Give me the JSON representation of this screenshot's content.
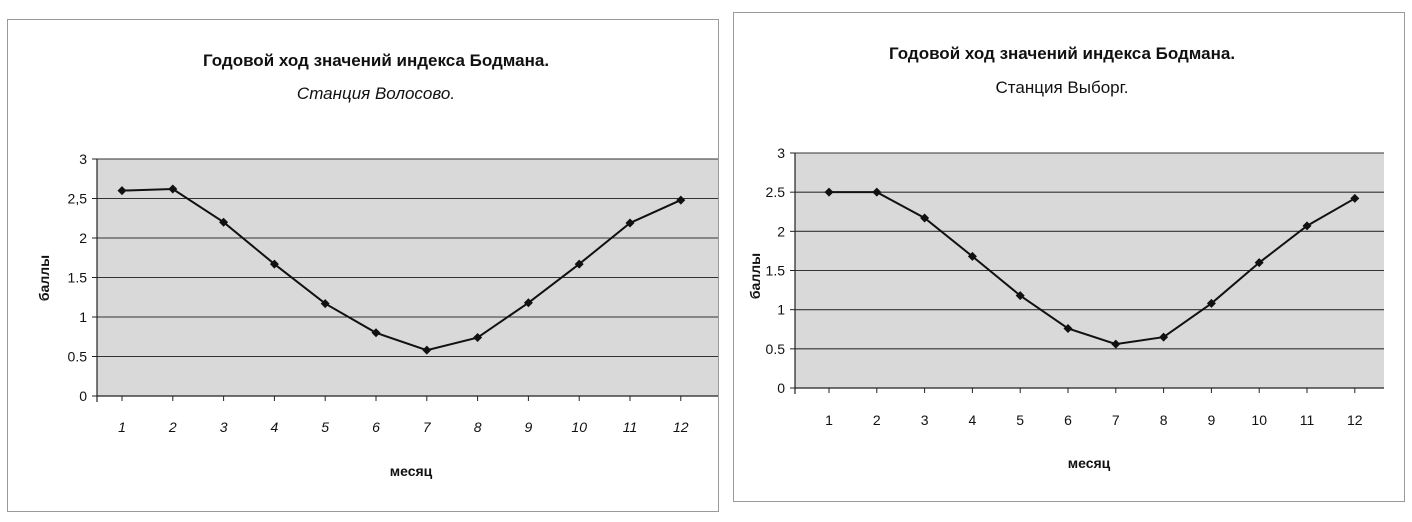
{
  "chart_data": [
    {
      "type": "line",
      "title": "Годовой ход значений индекса Бодмана.",
      "subtitle": "Станция Волосово.",
      "xlabel": "месяц",
      "ylabel": "баллы",
      "categories": [
        "1",
        "2",
        "3",
        "4",
        "5",
        "6",
        "7",
        "8",
        "9",
        "10",
        "11",
        "12"
      ],
      "y_ticks": [
        "0",
        "0.5",
        "1",
        "1.5",
        "2",
        "2,5",
        "3"
      ],
      "ylim": [
        0,
        3
      ],
      "grid": true,
      "series": [
        {
          "values": [
            2.6,
            2.62,
            2.2,
            1.67,
            1.17,
            0.8,
            0.58,
            0.74,
            1.18,
            1.67,
            2.19,
            2.48
          ]
        }
      ],
      "colors": {
        "plot_bg": "#d9d9d9",
        "line": "#111111",
        "grid": "#333333"
      }
    },
    {
      "type": "line",
      "title": "Годовой ход значений индекса Бодмана.",
      "subtitle": "Станция Выборг.",
      "xlabel": "месяц",
      "ylabel": "баллы",
      "categories": [
        "1",
        "2",
        "3",
        "4",
        "5",
        "6",
        "7",
        "8",
        "9",
        "10",
        "11",
        "12"
      ],
      "y_ticks": [
        "0",
        "0.5",
        "1",
        "1.5",
        "2",
        "2.5",
        "3"
      ],
      "ylim": [
        0,
        3
      ],
      "grid": true,
      "series": [
        {
          "values": [
            2.5,
            2.5,
            2.17,
            1.68,
            1.18,
            0.76,
            0.56,
            0.65,
            1.08,
            1.6,
            2.07,
            2.42
          ]
        }
      ],
      "colors": {
        "plot_bg": "#d9d9d9",
        "line": "#111111",
        "grid": "#333333"
      }
    }
  ]
}
